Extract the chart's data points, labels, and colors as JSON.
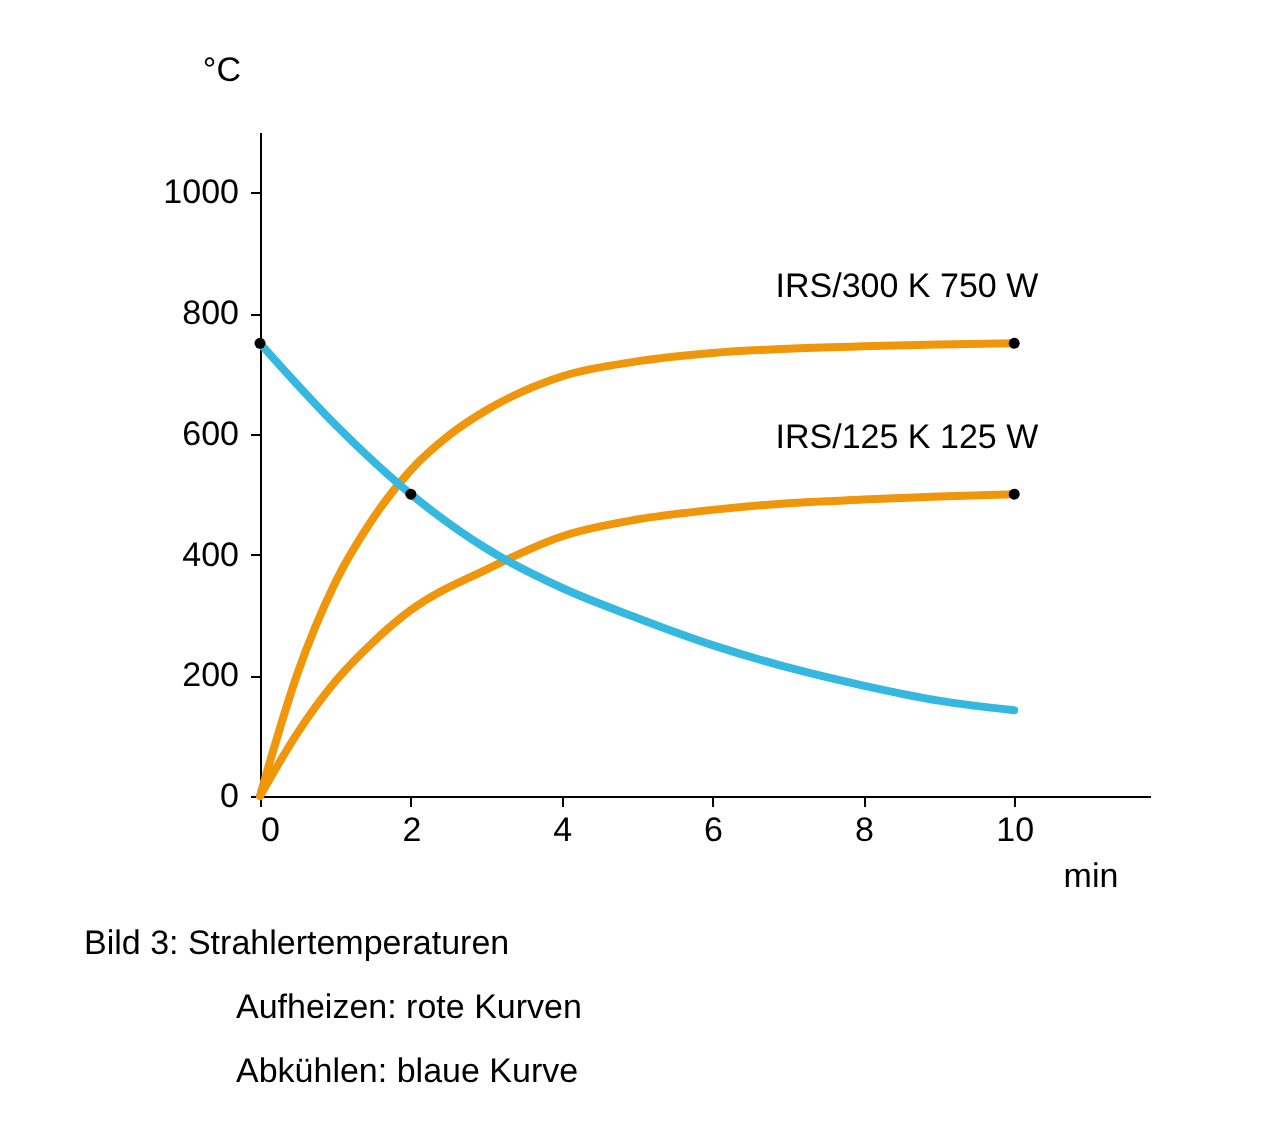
{
  "chart_data": {
    "type": "line",
    "xlabel": "min",
    "ylabel": "°C",
    "xlim": [
      0,
      11.8
    ],
    "ylim": [
      0,
      1100
    ],
    "xticks": [
      0,
      2,
      4,
      6,
      8,
      10
    ],
    "yticks": [
      0,
      200,
      400,
      600,
      800,
      1000
    ],
    "grid": false,
    "marker": "none",
    "series": [
      {
        "name": "IRS/300 K 750 W",
        "color": "#f0960a",
        "x": [
          0,
          0.5,
          1,
          1.5,
          2,
          2.5,
          3,
          4,
          5,
          6,
          7,
          8,
          9,
          10
        ],
        "values": [
          0,
          204,
          354,
          460,
          540,
          597,
          639,
          695,
          720,
          734,
          741,
          745,
          748,
          750
        ]
      },
      {
        "name": "IRS/125 K 125 W",
        "color": "#f0960a",
        "x": [
          0,
          0.5,
          1,
          1.5,
          2,
          3,
          4,
          5,
          6,
          7,
          8,
          9,
          10
        ],
        "values": [
          0,
          105,
          190,
          255,
          308,
          375,
          430,
          458,
          474,
          485,
          491,
          496,
          500
        ]
      },
      {
        "color": "#35b8e0",
        "x": [
          0,
          1,
          2,
          3,
          4,
          5,
          6,
          7,
          8,
          9,
          10
        ],
        "values": [
          750,
          615,
          500,
          410,
          345,
          295,
          250,
          213,
          183,
          158,
          142
        ]
      },
      {
        "type": "scatter",
        "marker": "circle",
        "color": "#000000",
        "x": [
          0,
          2,
          10,
          10
        ],
        "values": [
          750,
          500,
          750,
          500
        ]
      }
    ],
    "annotations": [
      "Bild 3: Strahlertemperaturen",
      "Aufheizen: rote Kurven",
      "Abkühlen: blaue Kurve"
    ]
  }
}
